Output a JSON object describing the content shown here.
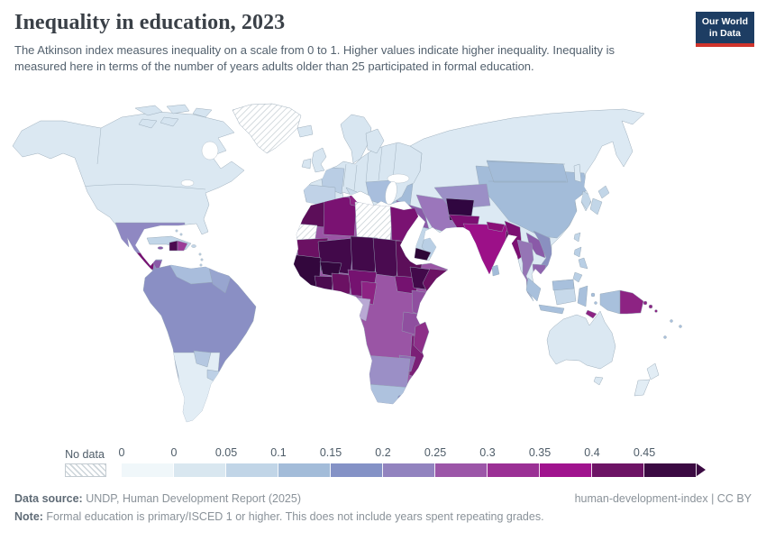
{
  "header": {
    "title": "Inequality in education, 2023",
    "subtitle": "The Atkinson index measures inequality on a scale from 0 to 1. Higher values indicate higher inequality. Inequality is measured here in terms of the number of years adults older than 25 participated in formal education.",
    "logo": {
      "line1": "Our World",
      "line2": "in Data",
      "bg_color": "#1d3d63",
      "accent_color": "#d0342c"
    }
  },
  "legend": {
    "no_data_label": "No data",
    "tick_labels": [
      "0",
      "0",
      "0.05",
      "0.1",
      "0.15",
      "0.2",
      "0.25",
      "0.3",
      "0.35",
      "0.4",
      "0.45"
    ],
    "bin_colors": [
      "#f0f7fa",
      "#d9e7f0",
      "#c1d5e7",
      "#a3bcd9",
      "#8492c6",
      "#9283bf",
      "#9c56a8",
      "#9b3095",
      "#a0138e",
      "#6d1365",
      "#3b0a42"
    ]
  },
  "footer": {
    "source_label": "Data source:",
    "source_value": " UNDP, Human Development Report (2025)",
    "rights": "human-development-index | CC BY",
    "note_label": "Note:",
    "note_value": " Formal education is primary/ISCED 1 or higher. This does not include years spent repeating grades."
  },
  "chart_data": {
    "type": "choropleth-map",
    "title": "Inequality in education, 2023",
    "metric": "Atkinson index of inequality in years of formal education (adults older than 25)",
    "scale": "0 to 1, higher = more inequality",
    "year": 2023,
    "legend_bins": [
      "0",
      "0–0.05",
      "0.05–0.1",
      "0.1–0.15",
      "0.15–0.2",
      "0.2–0.25",
      "0.25–0.3",
      "0.3–0.35",
      "0.35–0.4",
      "0.4–0.45",
      "≥0.45"
    ],
    "regions": {
      "north-america": {
        "label": "Canada & United States",
        "bin": "0–0.05",
        "color": "#dbe8f2"
      },
      "canada": {
        "label": "Canadian Arctic islands",
        "bin": "0–0.05",
        "color": "#d5e4f0"
      },
      "greenland": {
        "label": "Greenland",
        "bin": "No data",
        "color": "#ffffff"
      },
      "mexico": {
        "label": "Mexico",
        "bin": "0.2–0.25",
        "color": "#8f88c2"
      },
      "guatemala": {
        "label": "Guatemala",
        "bin": "0.35–0.4",
        "color": "#791070"
      },
      "honduras-nicaragua": {
        "label": "Honduras & Nicaragua",
        "bin": "0.25–0.3",
        "color": "#8a5aa8"
      },
      "costa-rica-panama": {
        "label": "Costa Rica & Panama",
        "bin": "0.15–0.2",
        "color": "#98a0cd"
      },
      "cuba": {
        "label": "Cuba",
        "bin": "0.05–0.1",
        "color": "#c2d6e8"
      },
      "haiti": {
        "label": "Haiti",
        "bin": "0.4–0.45",
        "color": "#4c0a50"
      },
      "dominican-republic": {
        "label": "Dominican Republic",
        "bin": "0.3–0.35",
        "color": "#9b3d98"
      },
      "jamaica": {
        "label": "Jamaica",
        "bin": "0.25–0.3",
        "color": "#8a5aa8"
      },
      "caribbean-small": {
        "label": "Small Caribbean islands",
        "bin": "0.05–0.1",
        "color": "#c2d6e8"
      },
      "south-america-core": {
        "label": "Brazil, Colombia, Peru, Bolivia & Ecuador",
        "bin": "0.15–0.2",
        "color": "#8a8fc4"
      },
      "venezuela": {
        "label": "Venezuela",
        "bin": "0.1–0.15",
        "color": "#a9bddc"
      },
      "guyana-suriname": {
        "label": "Guyana & Suriname",
        "bin": "0.15–0.2",
        "color": "#98a5cf"
      },
      "argentina-chile": {
        "label": "Argentina & Chile",
        "bin": "0–0.05",
        "color": "#e2edf5"
      },
      "paraguay": {
        "label": "Paraguay",
        "bin": "0.1–0.15",
        "color": "#b5c8e1"
      },
      "uruguay": {
        "label": "Uruguay",
        "bin": "0.05–0.1",
        "color": "#bdd0e6"
      },
      "europe": {
        "label": "Europe (most countries)",
        "bin": "0–0.05",
        "color": "#d8e6f1"
      },
      "france": {
        "label": "France",
        "bin": "0.05–0.1",
        "color": "#b9cde4"
      },
      "spain-portugal": {
        "label": "Spain & Portugal",
        "bin": "0.05–0.1",
        "color": "#c0d2e7"
      },
      "italy": {
        "label": "Italy",
        "bin": "0.05–0.1",
        "color": "#cadbeb"
      },
      "balkans": {
        "label": "Balkans",
        "bin": "0.1–0.15",
        "color": "#a8bedd"
      },
      "russia": {
        "label": "Russia, Kazakhstan & Northern Eurasia",
        "bin": "0–0.05",
        "color": "#dce9f3"
      },
      "turkey": {
        "label": "Turkey",
        "bin": "0.1–0.15",
        "color": "#a3bcd9"
      },
      "syria-levant": {
        "label": "Syria & Levant",
        "bin": "0.25–0.3",
        "color": "#9064ae"
      },
      "iraq": {
        "label": "Iraq",
        "bin": "0.25–0.3",
        "color": "#8a5aa8"
      },
      "iran": {
        "label": "Iran",
        "bin": "0.2–0.25",
        "color": "#9b76bb"
      },
      "saudi-arabia": {
        "label": "Saudi Arabia",
        "bin": "0.05–0.1",
        "color": "#c2d6e8"
      },
      "oman": {
        "label": "Oman",
        "bin": "0.05–0.1",
        "color": "#b9cfe5"
      },
      "yemen": {
        "label": "Yemen",
        "bin": "≥0.45",
        "color": "#2d0636"
      },
      "central-asia": {
        "label": "Central Asia (Uzbekistan, Turkmenistan)",
        "bin": "0.2–0.25",
        "color": "#9b8fc6"
      },
      "afghanistan": {
        "label": "Afghanistan",
        "bin": "≥0.45",
        "color": "#300640"
      },
      "pakistan": {
        "label": "Pakistan",
        "bin": "0.4–0.45",
        "color": "#7c0f72"
      },
      "india": {
        "label": "India",
        "bin": "0.35–0.4",
        "color": "#9c1088"
      },
      "nepal": {
        "label": "Nepal",
        "bin": "0.35–0.4",
        "color": "#8a1078"
      },
      "bangladesh": {
        "label": "Bangladesh",
        "bin": "0.4–0.45",
        "color": "#55094f"
      },
      "china": {
        "label": "China",
        "bin": "0.1–0.15",
        "color": "#a3bcd9"
      },
      "mongolia": {
        "label": "Mongolia",
        "bin": "0.1–0.15",
        "color": "#a3bcd9"
      },
      "south-korea": {
        "label": "South Korea",
        "bin": "0.05–0.1",
        "color": "#c2d6e8"
      },
      "japan": {
        "label": "Japan",
        "bin": "0.05–0.1",
        "color": "#c2d6e8"
      },
      "taiwan": {
        "label": "Taiwan",
        "bin": "0.05–0.1",
        "color": "#c2d6e8"
      },
      "sri-lanka": {
        "label": "Sri Lanka",
        "bin": "0.1–0.15",
        "color": "#a3bcd9"
      },
      "myanmar": {
        "label": "Myanmar",
        "bin": "0.4–0.45",
        "color": "#7c0f72"
      },
      "thailand": {
        "label": "Thailand",
        "bin": "0.2–0.25",
        "color": "#9575b5"
      },
      "laos": {
        "label": "Laos",
        "bin": "0.25–0.3",
        "color": "#8a5aa8"
      },
      "vietnam": {
        "label": "Vietnam",
        "bin": "0.15–0.2",
        "color": "#8a90c0"
      },
      "cambodia": {
        "label": "Cambodia",
        "bin": "0.25–0.3",
        "color": "#9064ae"
      },
      "malaysia": {
        "label": "Malaysia",
        "bin": "0.1–0.15",
        "color": "#a8c0dc"
      },
      "indonesia": {
        "label": "Indonesia",
        "bin": "0.1–0.15",
        "color": "#a8c0dc"
      },
      "kalimantan": {
        "label": "Indonesia (Kalimantan)",
        "bin": "0.05–0.1",
        "color": "#c7d9ea"
      },
      "philippines": {
        "label": "Philippines",
        "bin": "0.1–0.15",
        "color": "#b9cfe5"
      },
      "timor-leste": {
        "label": "Timor-Leste",
        "bin": "0.3–0.35",
        "color": "#8d2383"
      },
      "papua-new-guinea": {
        "label": "Papua New Guinea",
        "bin": "0.3–0.35",
        "color": "#8d2383"
      },
      "solomon-islands": {
        "label": "Solomon Islands",
        "bin": "0.3–0.35",
        "color": "#8d2383"
      },
      "pacific-islands": {
        "label": "Pacific islands",
        "bin": "0.1–0.15",
        "color": "#a8c0dc"
      },
      "australia": {
        "label": "Australia",
        "bin": "0–0.05",
        "color": "#dbe8f2"
      },
      "new-zealand": {
        "label": "New Zealand",
        "bin": "0–0.05",
        "color": "#e2edf5"
      },
      "morocco": {
        "label": "Morocco",
        "bin": "0.4–0.45",
        "color": "#5c0e59"
      },
      "western-sahara": {
        "label": "Western Sahara",
        "bin": "No data",
        "color": "#ffffff"
      },
      "algeria": {
        "label": "Algeria",
        "bin": "0.35–0.4",
        "color": "#7a1272"
      },
      "tunisia": {
        "label": "Tunisia",
        "bin": "0.3–0.35",
        "color": "#8d2383"
      },
      "libya": {
        "label": "Libya",
        "bin": "No data",
        "color": "#ffffff"
      },
      "egypt": {
        "label": "Egypt",
        "bin": "0.35–0.4",
        "color": "#7a1272"
      },
      "mauritania": {
        "label": "Mauritania",
        "bin": "0.4–0.45",
        "color": "#6b1163"
      },
      "mali": {
        "label": "Mali",
        "bin": "≥0.45",
        "color": "#42094a"
      },
      "niger": {
        "label": "Niger",
        "bin": "≥0.45",
        "color": "#42094a"
      },
      "chad": {
        "label": "Chad",
        "bin": "≥0.45",
        "color": "#4a0b50"
      },
      "sudan": {
        "label": "Sudan",
        "bin": "0.4–0.45",
        "color": "#5c0e59"
      },
      "west-african-coast": {
        "label": "Senegal, Guinea, Sierra Leone & Liberia",
        "bin": "≥0.45",
        "color": "#33073d"
      },
      "burkina-faso": {
        "label": "Burkina Faso",
        "bin": "≥0.45",
        "color": "#33073d"
      },
      "cote-divoire": {
        "label": "Côte d'Ivoire",
        "bin": "0.4–0.45",
        "color": "#4c0b50"
      },
      "ghana-togo-benin": {
        "label": "Ghana, Togo & Benin",
        "bin": "0.4–0.45",
        "color": "#6b1163"
      },
      "nigeria": {
        "label": "Nigeria",
        "bin": "0.35–0.4",
        "color": "#751270"
      },
      "cameroon": {
        "label": "Cameroon",
        "bin": "0.3–0.35",
        "color": "#8d2383"
      },
      "south-sudan": {
        "label": "South Sudan",
        "bin": "0.35–0.4",
        "color": "#751270"
      },
      "ethiopia": {
        "label": "Ethiopia",
        "bin": "0.4–0.45",
        "color": "#42094a"
      },
      "somalia": {
        "label": "Somalia",
        "bin": "0.4–0.45",
        "color": "#6b1163"
      },
      "kenya": {
        "label": "Kenya",
        "bin": "0.25–0.3",
        "color": "#8f4f9f"
      },
      "central-africa": {
        "label": "DR Congo, CAR, Angola & Zambia",
        "bin": "0.25–0.3",
        "color": "#9a55a5"
      },
      "congo-gabon": {
        "label": "Congo & Gabon",
        "bin": "0.2–0.25",
        "color": "#b9a9d4"
      },
      "tanzania": {
        "label": "Tanzania",
        "bin": "0.3–0.35",
        "color": "#8f4f9f"
      },
      "mozambique-malawi": {
        "label": "Mozambique & Malawi",
        "bin": "0.35–0.4",
        "color": "#7b2076"
      },
      "zimbabwe": {
        "label": "Zimbabwe",
        "bin": "0.2–0.25",
        "color": "#8f6ab2"
      },
      "namibia-botswana": {
        "label": "Namibia & Botswana",
        "bin": "0.2–0.25",
        "color": "#9b8fc6"
      },
      "south-africa": {
        "label": "South Africa",
        "bin": "0.1–0.15",
        "color": "#aec2de"
      },
      "lesotho": {
        "label": "Lesotho",
        "bin": "0.15–0.2",
        "color": "#8a8fc4"
      },
      "madagascar": {
        "label": "Madagascar",
        "bin": "0.3–0.35",
        "color": "#8d2f88"
      }
    }
  }
}
